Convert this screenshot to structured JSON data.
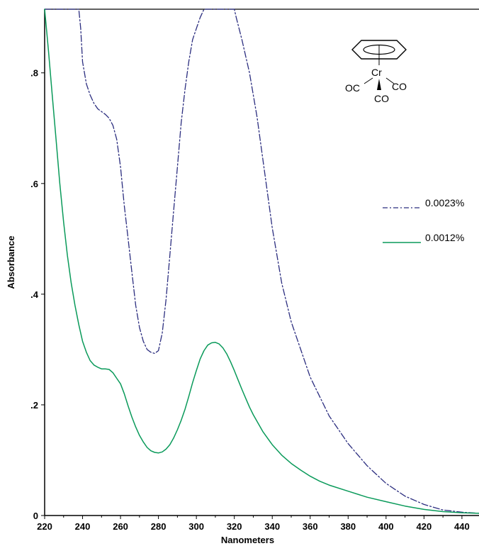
{
  "chart_data": {
    "type": "line",
    "title": "",
    "xlabel": "Nanometers",
    "ylabel": "Absorbance",
    "xlim": [
      220,
      449
    ],
    "ylim": [
      0,
      0.915
    ],
    "xticks": [
      220,
      240,
      260,
      280,
      300,
      320,
      340,
      360,
      380,
      400,
      420,
      440
    ],
    "xtick_labels": [
      "220",
      "240",
      "260",
      "280",
      "300",
      "320",
      "340",
      "360",
      "380",
      "400",
      "420",
      "440"
    ],
    "yticks": [
      0,
      0.2,
      0.4,
      0.6,
      0.8
    ],
    "ytick_labels": [
      "0",
      ".2",
      ".4",
      ".6",
      ".8"
    ],
    "grid": false,
    "legend_position": "right",
    "series": [
      {
        "name": "0.0023%",
        "color": "#2b2d7f",
        "line_style": "dash-dot",
        "x": [
          220,
          238,
          239,
          240,
          242,
          244,
          246,
          248,
          250,
          252,
          254,
          256,
          258,
          260,
          262,
          264,
          266,
          268,
          270,
          272,
          274,
          276,
          278,
          280,
          282,
          284,
          286,
          288,
          290,
          292,
          294,
          296,
          298,
          300,
          302,
          304,
          305,
          320,
          321,
          324,
          328,
          332,
          336,
          340,
          345,
          350,
          360,
          370,
          380,
          390,
          400,
          410,
          420,
          430,
          440,
          449
        ],
        "y": [
          0.915,
          0.915,
          0.88,
          0.82,
          0.78,
          0.76,
          0.745,
          0.735,
          0.73,
          0.725,
          0.718,
          0.705,
          0.68,
          0.63,
          0.56,
          0.5,
          0.44,
          0.38,
          0.34,
          0.315,
          0.3,
          0.295,
          0.293,
          0.298,
          0.33,
          0.39,
          0.47,
          0.55,
          0.63,
          0.71,
          0.77,
          0.82,
          0.86,
          0.88,
          0.9,
          0.915,
          0.915,
          0.915,
          0.9,
          0.86,
          0.8,
          0.72,
          0.62,
          0.52,
          0.42,
          0.35,
          0.25,
          0.18,
          0.13,
          0.09,
          0.058,
          0.035,
          0.02,
          0.01,
          0.006,
          0.004
        ]
      },
      {
        "name": "0.0012%",
        "color": "#0a9a5a",
        "line_style": "solid",
        "x": [
          220,
          222,
          224,
          226,
          228,
          230,
          232,
          234,
          236,
          238,
          240,
          242,
          244,
          246,
          248,
          250,
          252,
          254,
          256,
          258,
          260,
          262,
          264,
          266,
          268,
          270,
          272,
          274,
          276,
          278,
          280,
          282,
          284,
          286,
          288,
          290,
          292,
          294,
          296,
          298,
          300,
          302,
          304,
          306,
          308,
          310,
          312,
          314,
          316,
          318,
          320,
          322,
          324,
          326,
          328,
          330,
          335,
          340,
          345,
          350,
          355,
          360,
          365,
          370,
          380,
          390,
          400,
          410,
          420,
          430,
          440,
          449
        ],
        "y": [
          0.915,
          0.84,
          0.76,
          0.68,
          0.6,
          0.53,
          0.47,
          0.42,
          0.38,
          0.345,
          0.315,
          0.295,
          0.28,
          0.272,
          0.268,
          0.265,
          0.265,
          0.264,
          0.258,
          0.248,
          0.238,
          0.22,
          0.198,
          0.178,
          0.16,
          0.145,
          0.133,
          0.123,
          0.117,
          0.114,
          0.113,
          0.115,
          0.12,
          0.128,
          0.14,
          0.155,
          0.172,
          0.192,
          0.215,
          0.24,
          0.262,
          0.283,
          0.298,
          0.308,
          0.312,
          0.313,
          0.31,
          0.303,
          0.292,
          0.278,
          0.262,
          0.245,
          0.228,
          0.212,
          0.196,
          0.182,
          0.152,
          0.128,
          0.109,
          0.094,
          0.082,
          0.071,
          0.062,
          0.055,
          0.044,
          0.033,
          0.025,
          0.017,
          0.011,
          0.007,
          0.005,
          0.004
        ]
      }
    ],
    "annotation": {
      "labels": [
        "Cr",
        "OC",
        "CO",
        "CO"
      ]
    }
  }
}
